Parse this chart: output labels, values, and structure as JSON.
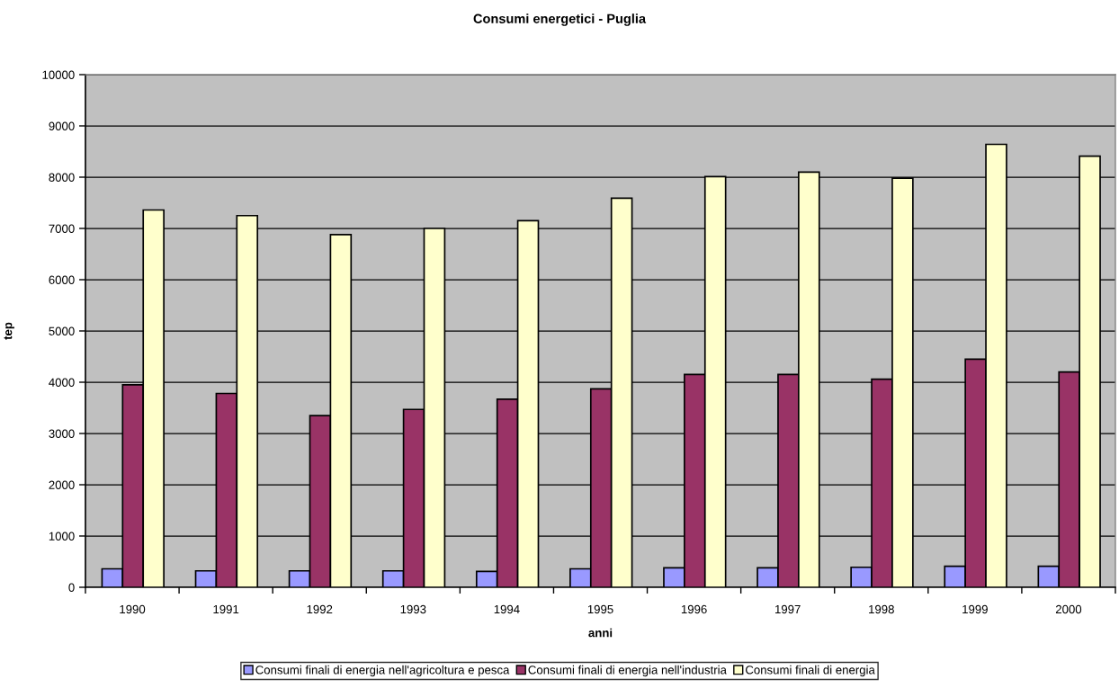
{
  "chart_data": {
    "type": "bar",
    "title": "Consumi energetici - Puglia",
    "xlabel": "anni",
    "ylabel": "tep",
    "categories": [
      "1990",
      "1991",
      "1992",
      "1993",
      "1994",
      "1995",
      "1996",
      "1997",
      "1998",
      "1999",
      "2000"
    ],
    "series": [
      {
        "name": "Consumi finali di energia nell'agricoltura e pesca",
        "color": "#9999ff",
        "values": [
          360,
          320,
          320,
          320,
          310,
          360,
          380,
          380,
          390,
          410,
          410
        ]
      },
      {
        "name": "Consumi finali di energia nell'industria",
        "color": "#993366",
        "values": [
          3950,
          3780,
          3350,
          3470,
          3670,
          3870,
          4150,
          4150,
          4060,
          4450,
          4200
        ]
      },
      {
        "name": "Consumi finali di energia",
        "color": "#ffffcc",
        "values": [
          7360,
          7250,
          6880,
          7000,
          7150,
          7590,
          8010,
          8100,
          7980,
          8640,
          8410
        ]
      }
    ],
    "ylim": [
      0,
      10000
    ],
    "yticks": [
      0,
      1000,
      2000,
      3000,
      4000,
      5000,
      6000,
      7000,
      8000,
      9000,
      10000
    ],
    "grid": "y",
    "legend": "bottom"
  }
}
